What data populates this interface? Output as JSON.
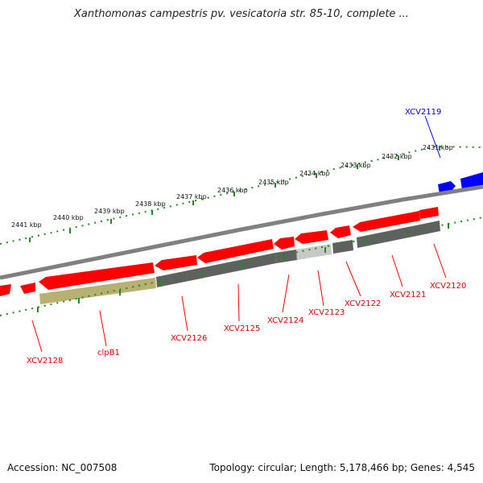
{
  "title": "Xanthomonas campestris pv. vesicatoria str. 85-10, complete ...",
  "accession_label": "Accession: NC_007508",
  "summary_label": "Topology: circular; Length: 5,178,466 bp; Genes: 4,545",
  "colors": {
    "forward_gene": "#0000ff",
    "reverse_gene": "#ff0000",
    "label_reverse": "#dd0000",
    "label_forward": "#0000cc",
    "cds_gray": "#606060",
    "cds_olive": "#b8b070",
    "cds_light": "#c8c8c8",
    "backbone": "#808080",
    "ruler_dots": "#228822"
  },
  "ruler_labels": [
    "2441 kbp",
    "2440 kbp",
    "2439 kbp",
    "2438 kbp",
    "2437 kbp",
    "2436 kbp",
    "2435 kbp",
    "2434 kbp",
    "2433 kbp",
    "2432 kbp",
    "2431 kbp"
  ],
  "gene_labels": [
    "XCV2128",
    "clpB1",
    "XCV2126",
    "XCV2125",
    "XCV2124",
    "XCV2123",
    "XCV2122",
    "XCV2121",
    "XCV2120",
    "XCV2119"
  ]
}
